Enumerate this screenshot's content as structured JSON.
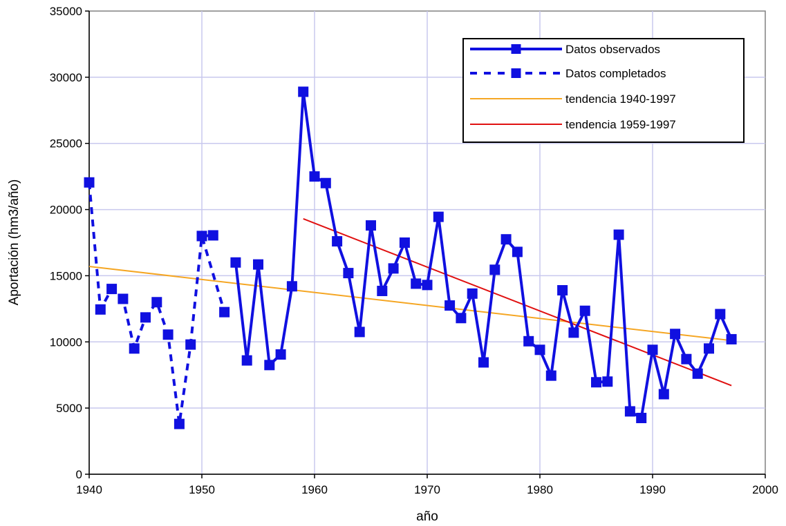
{
  "chart_data": {
    "type": "line",
    "xlabel": "año",
    "ylabel": "Aportación (hm3/año)",
    "xlim": [
      1940,
      2000
    ],
    "ylim": [
      0,
      35000
    ],
    "x_ticks": [
      1940,
      1950,
      1960,
      1970,
      1980,
      1990,
      2000
    ],
    "y_ticks": [
      0,
      5000,
      10000,
      15000,
      20000,
      25000,
      30000,
      35000
    ],
    "grid": true,
    "legend_position": "top-right",
    "colors": {
      "observed": "#1010e0",
      "completed": "#1010e0",
      "trend_all": "#f5a623",
      "trend_recent": "#e01010",
      "grid": "#c8c8ee",
      "frame": "#808080"
    },
    "series": [
      {
        "name": "Datos observados",
        "style": "solid-line-square-markers",
        "segments": [
          {
            "x": [
              1950,
              1951
            ],
            "y": [
              18000,
              18050
            ]
          },
          {
            "x": [
              1953,
              1954,
              1955,
              1956,
              1957,
              1958,
              1959,
              1960,
              1961,
              1962,
              1963,
              1964,
              1965,
              1966,
              1967,
              1968,
              1969,
              1970,
              1971,
              1972,
              1973,
              1974,
              1975,
              1976,
              1977,
              1978,
              1979,
              1980,
              1981,
              1982,
              1983,
              1984,
              1985,
              1986,
              1987,
              1988,
              1989,
              1990,
              1991,
              1992,
              1993,
              1994,
              1995,
              1996,
              1997
            ],
            "y": [
              16000,
              8600,
              15850,
              8250,
              9050,
              14200,
              28900,
              22500,
              22000,
              17600,
              15200,
              10750,
              18800,
              13850,
              15550,
              17500,
              14400,
              14300,
              19450,
              12750,
              11800,
              13650,
              8450,
              15450,
              17750,
              16800,
              10050,
              9400,
              7450,
              13900,
              10700,
              12350,
              6950,
              7000,
              18100,
              4750,
              4250,
              9400,
              6050,
              10600,
              8700,
              7600,
              9500,
              12100,
              10200
            ]
          }
        ]
      },
      {
        "name": "Datos completados",
        "style": "dashed-line-square-markers",
        "x": [
          1940,
          1941,
          1942,
          1943,
          1944,
          1945,
          1946,
          1947,
          1948,
          1949,
          1950,
          1952
        ],
        "y": [
          22050,
          12450,
          14000,
          13250,
          9500,
          11850,
          13000,
          10550,
          3800,
          9800,
          18000,
          12250
        ]
      },
      {
        "name": "tendencia 1940-1997",
        "style": "line",
        "x": [
          1940,
          1997
        ],
        "y": [
          15700,
          10100
        ]
      },
      {
        "name": "tendencia 1959-1997",
        "style": "line",
        "x": [
          1959,
          1997
        ],
        "y": [
          19300,
          6700
        ]
      }
    ]
  }
}
